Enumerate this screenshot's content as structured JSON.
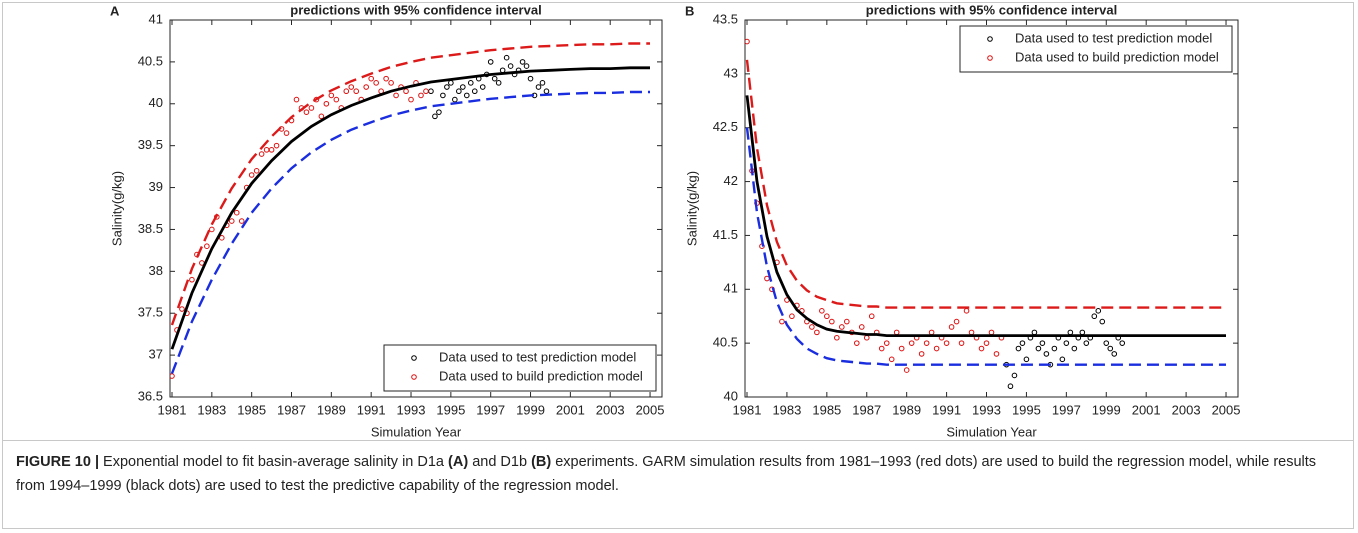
{
  "chart_data": [
    {
      "type": "scatter",
      "panel": "A",
      "title": "predictions with 95% confidence interval",
      "xlabel": "Simulation Year",
      "ylabel": "Salinity(g/kg)",
      "xlim": [
        1980.9,
        2005.6
      ],
      "ylim": [
        36.5,
        41
      ],
      "xticks": [
        1981,
        1983,
        1985,
        1987,
        1989,
        1991,
        1993,
        1995,
        1997,
        1999,
        2001,
        2003,
        2005
      ],
      "yticks": [
        36.5,
        37,
        37.5,
        38,
        38.5,
        39,
        39.5,
        40,
        40.5,
        41
      ],
      "legend": "lower right",
      "lines": [
        {
          "color": "#dd1a1a",
          "dash": true,
          "x": [
            1981,
            1982,
            1983,
            1984,
            1985,
            1986,
            1987,
            1988,
            1989,
            1990,
            1991,
            1992,
            1993,
            1994,
            1995,
            1996,
            1997,
            1998,
            1999,
            2000,
            2001,
            2002,
            2003,
            2004,
            2005
          ],
          "values": [
            37.36,
            38.03,
            38.56,
            38.99,
            39.34,
            39.61,
            39.84,
            40.02,
            40.16,
            40.27,
            40.36,
            40.44,
            40.5,
            40.55,
            40.58,
            40.61,
            40.64,
            40.66,
            40.68,
            40.69,
            40.7,
            40.71,
            40.71,
            40.72,
            40.72
          ]
        },
        {
          "color": "#1a2ee0",
          "dash": true,
          "x": [
            1981,
            1982,
            1983,
            1984,
            1985,
            1986,
            1987,
            1988,
            1989,
            1990,
            1991,
            1992,
            1993,
            1994,
            1995,
            1996,
            1997,
            1998,
            1999,
            2000,
            2001,
            2002,
            2003,
            2004,
            2005
          ],
          "values": [
            36.78,
            37.4,
            37.9,
            38.33,
            38.7,
            38.99,
            39.23,
            39.42,
            39.57,
            39.69,
            39.78,
            39.86,
            39.92,
            39.97,
            40.0,
            40.03,
            40.06,
            40.08,
            40.1,
            40.11,
            40.12,
            40.13,
            40.13,
            40.14,
            40.14
          ]
        },
        {
          "color": "#000000",
          "dash": false,
          "x": [
            1981,
            1982,
            1983,
            1984,
            1985,
            1986,
            1987,
            1988,
            1989,
            1990,
            1991,
            1992,
            1993,
            1994,
            1995,
            1996,
            1997,
            1998,
            1999,
            2000,
            2001,
            2002,
            2003,
            2004,
            2005
          ],
          "values": [
            37.07,
            37.74,
            38.27,
            38.7,
            39.05,
            39.32,
            39.55,
            39.73,
            39.87,
            39.98,
            40.07,
            40.15,
            40.21,
            40.26,
            40.29,
            40.32,
            40.35,
            40.37,
            40.39,
            40.4,
            40.41,
            40.42,
            40.42,
            40.43,
            40.43
          ]
        }
      ],
      "series": [
        {
          "name": "Data used to test prediction model",
          "color": "#000000",
          "x": [
            1994,
            1994.2,
            1994.4,
            1994.6,
            1994.8,
            1995,
            1995.2,
            1995.4,
            1995.6,
            1995.8,
            1996,
            1996.2,
            1996.4,
            1996.6,
            1996.8,
            1997,
            1997.2,
            1997.4,
            1997.6,
            1997.8,
            1998,
            1998.2,
            1998.4,
            1998.6,
            1998.8,
            1999,
            1999.2,
            1999.4,
            1999.6,
            1999.8
          ],
          "values": [
            40.15,
            39.85,
            39.9,
            40.1,
            40.2,
            40.25,
            40.05,
            40.15,
            40.2,
            40.1,
            40.25,
            40.15,
            40.3,
            40.2,
            40.35,
            40.5,
            40.3,
            40.25,
            40.4,
            40.55,
            40.45,
            40.35,
            40.4,
            40.5,
            40.45,
            40.3,
            40.1,
            40.2,
            40.25,
            40.15
          ]
        },
        {
          "name": "Data used to build prediction model",
          "color": "#e01010",
          "x": [
            1981,
            1981.25,
            1981.5,
            1981.75,
            1982,
            1982.25,
            1982.5,
            1982.75,
            1983,
            1983.25,
            1983.5,
            1983.75,
            1984,
            1984.25,
            1984.5,
            1984.75,
            1985,
            1985.25,
            1985.5,
            1985.75,
            1986,
            1986.25,
            1986.5,
            1986.75,
            1987,
            1987.25,
            1987.5,
            1987.75,
            1988,
            1988.25,
            1988.5,
            1988.75,
            1989,
            1989.25,
            1989.5,
            1989.75,
            1990,
            1990.25,
            1990.5,
            1990.75,
            1991,
            1991.25,
            1991.5,
            1991.75,
            1992,
            1992.25,
            1992.5,
            1992.75,
            1993,
            1993.25,
            1993.5,
            1993.75
          ],
          "values": [
            36.75,
            37.3,
            37.55,
            37.5,
            37.9,
            38.2,
            38.1,
            38.3,
            38.5,
            38.65,
            38.4,
            38.55,
            38.6,
            38.7,
            38.6,
            39.0,
            39.15,
            39.2,
            39.4,
            39.45,
            39.45,
            39.5,
            39.7,
            39.65,
            39.8,
            40.05,
            39.95,
            39.9,
            39.95,
            40.05,
            39.85,
            40.0,
            40.1,
            40.05,
            39.95,
            40.15,
            40.2,
            40.15,
            40.05,
            40.2,
            40.3,
            40.25,
            40.15,
            40.3,
            40.25,
            40.1,
            40.2,
            40.15,
            40.05,
            40.25,
            40.1,
            40.15
          ]
        }
      ]
    },
    {
      "type": "scatter",
      "panel": "B",
      "title": "predictions with 95% confidence interval",
      "xlabel": "Simulation Year",
      "ylabel": "Salinity(g/kg)",
      "xlim": [
        1980.9,
        2005.6
      ],
      "ylim": [
        40,
        43.5
      ],
      "xticks": [
        1981,
        1983,
        1985,
        1987,
        1989,
        1991,
        1993,
        1995,
        1997,
        1999,
        2001,
        2003,
        2005
      ],
      "yticks": [
        40,
        40.5,
        41,
        41.5,
        42,
        42.5,
        43,
        43.5
      ],
      "legend": "upper right",
      "lines": [
        {
          "color": "#dd1a1a",
          "dash": true,
          "x": [
            1981,
            1981.5,
            1982,
            1982.5,
            1983,
            1983.5,
            1984,
            1984.5,
            1985,
            1985.5,
            1986,
            1986.5,
            1987,
            1987.5,
            1988,
            1990,
            1995,
            2000,
            2005
          ],
          "values": [
            43.13,
            42.31,
            41.78,
            41.44,
            41.22,
            41.08,
            40.99,
            40.93,
            40.9,
            40.87,
            40.86,
            40.85,
            40.84,
            40.84,
            40.83,
            40.83,
            40.83,
            40.83,
            40.83
          ]
        },
        {
          "color": "#1a2ee0",
          "dash": true,
          "x": [
            1981,
            1981.5,
            1982,
            1982.5,
            1983,
            1983.5,
            1984,
            1984.5,
            1985,
            1985.5,
            1986,
            1986.5,
            1987,
            1987.5,
            1988,
            1990,
            1995,
            2000,
            2005
          ],
          "values": [
            42.5,
            41.71,
            41.21,
            40.88,
            40.67,
            40.54,
            40.45,
            40.4,
            40.36,
            40.34,
            40.33,
            40.32,
            40.31,
            40.31,
            40.3,
            40.3,
            40.3,
            40.3,
            40.3
          ]
        },
        {
          "color": "#000000",
          "dash": false,
          "x": [
            1981,
            1981.5,
            1982,
            1982.5,
            1983,
            1983.5,
            1984,
            1984.5,
            1985,
            1985.5,
            1986,
            1986.5,
            1987,
            1987.5,
            1988,
            1990,
            1995,
            2000,
            2005
          ],
          "values": [
            42.8,
            42.0,
            41.49,
            41.16,
            40.95,
            40.81,
            40.73,
            40.67,
            40.63,
            40.61,
            40.6,
            40.59,
            40.58,
            40.58,
            40.57,
            40.57,
            40.57,
            40.57,
            40.57
          ]
        }
      ],
      "series": [
        {
          "name": "Data used to test prediction model",
          "color": "#000000",
          "x": [
            1994,
            1994.2,
            1994.4,
            1994.6,
            1994.8,
            1995,
            1995.2,
            1995.4,
            1995.6,
            1995.8,
            1996,
            1996.2,
            1996.4,
            1996.6,
            1996.8,
            1997,
            1997.2,
            1997.4,
            1997.6,
            1997.8,
            1998,
            1998.2,
            1998.4,
            1998.6,
            1998.8,
            1999,
            1999.2,
            1999.4,
            1999.6,
            1999.8
          ],
          "values": [
            40.3,
            40.1,
            40.2,
            40.45,
            40.5,
            40.35,
            40.55,
            40.6,
            40.45,
            40.5,
            40.4,
            40.3,
            40.45,
            40.55,
            40.35,
            40.5,
            40.6,
            40.45,
            40.55,
            40.6,
            40.5,
            40.55,
            40.75,
            40.8,
            40.7,
            40.5,
            40.45,
            40.4,
            40.55,
            40.5
          ]
        },
        {
          "name": "Data used to build prediction model",
          "color": "#e01010",
          "x": [
            1981,
            1981.25,
            1981.5,
            1981.75,
            1982,
            1982.25,
            1982.5,
            1982.75,
            1983,
            1983.25,
            1983.5,
            1983.75,
            1984,
            1984.25,
            1984.5,
            1984.75,
            1985,
            1985.25,
            1985.5,
            1985.75,
            1986,
            1986.25,
            1986.5,
            1986.75,
            1987,
            1987.25,
            1987.5,
            1987.75,
            1988,
            1988.25,
            1988.5,
            1988.75,
            1989,
            1989.25,
            1989.5,
            1989.75,
            1990,
            1990.25,
            1990.5,
            1990.75,
            1991,
            1991.25,
            1991.5,
            1991.75,
            1992,
            1992.25,
            1992.5,
            1992.75,
            1993,
            1993.25,
            1993.5,
            1993.75
          ],
          "values": [
            43.3,
            42.1,
            41.8,
            41.4,
            41.1,
            41.0,
            41.25,
            40.7,
            40.9,
            40.75,
            40.85,
            40.8,
            40.7,
            40.65,
            40.6,
            40.8,
            40.75,
            40.7,
            40.55,
            40.65,
            40.7,
            40.6,
            40.5,
            40.65,
            40.55,
            40.75,
            40.6,
            40.45,
            40.5,
            40.35,
            40.6,
            40.45,
            40.25,
            40.5,
            40.55,
            40.4,
            40.5,
            40.6,
            40.45,
            40.55,
            40.5,
            40.65,
            40.7,
            40.5,
            40.8,
            40.6,
            40.55,
            40.45,
            40.5,
            40.6,
            40.4,
            40.55
          ]
        }
      ]
    }
  ],
  "caption": {
    "parts": [
      {
        "text": "FIGURE 10 |",
        "bold": true
      },
      {
        "text": " Exponential model to fit basin-average salinity in D1a ",
        "bold": false
      },
      {
        "text": "(A)",
        "bold": true
      },
      {
        "text": " and D1b ",
        "bold": false
      },
      {
        "text": "(B)",
        "bold": true
      },
      {
        "text": " experiments. GARM simulation results from 1981–1993 (red dots) are used to build the regression model, while results from 1994–1999 (black dots) are used to test the predictive capability of the regression model.",
        "bold": false
      }
    ]
  }
}
